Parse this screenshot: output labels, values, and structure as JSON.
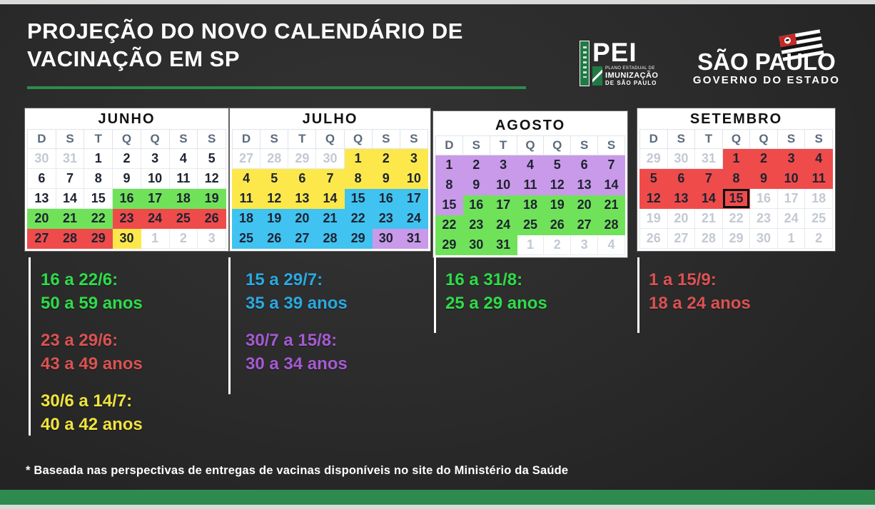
{
  "title": {
    "lines": [
      "PROJEÇÃO DO NOVO CALENDÁRIO DE",
      "VACINAÇÃO EM SP"
    ]
  },
  "logos": {
    "pei": {
      "acronym": "PEI",
      "subtitle_lines": [
        "PLANO ESTADUAL DE",
        "IMUNIZAÇÃO",
        "DE SÃO PAULO"
      ]
    },
    "sp": {
      "name": "SÃO PAULO",
      "subtitle": "GOVERNO DO ESTADO"
    }
  },
  "colors": {
    "background": "#2b2b2b",
    "accent_green": "#2e8a4e",
    "cell": {
      "green": "#70e25a",
      "red": "#ef4b4b",
      "yellow": "#fde84b",
      "blue": "#40c3f1",
      "purple": "#c99ae9"
    },
    "legend": {
      "green": "#2edc49",
      "red": "#db5252",
      "yellow": "#f0e43d",
      "blue": "#2aa9e1",
      "purple": "#a55ad2"
    },
    "muted_day": "#c3c9d3",
    "day_text": "#1d2330",
    "weekday_text": "#5b6b7d"
  },
  "calendars": [
    {
      "month": "JUNHO",
      "weekdays": [
        "D",
        "S",
        "T",
        "Q",
        "Q",
        "S",
        "S"
      ],
      "rows": [
        [
          {
            "d": "30",
            "muted": true
          },
          {
            "d": "31",
            "muted": true
          },
          {
            "d": "1"
          },
          {
            "d": "2"
          },
          {
            "d": "3"
          },
          {
            "d": "4"
          },
          {
            "d": "5"
          }
        ],
        [
          {
            "d": "6"
          },
          {
            "d": "7"
          },
          {
            "d": "8"
          },
          {
            "d": "9"
          },
          {
            "d": "10"
          },
          {
            "d": "11"
          },
          {
            "d": "12"
          }
        ],
        [
          {
            "d": "13"
          },
          {
            "d": "14"
          },
          {
            "d": "15"
          },
          {
            "d": "16",
            "bg": "green"
          },
          {
            "d": "17",
            "bg": "green"
          },
          {
            "d": "18",
            "bg": "green"
          },
          {
            "d": "19",
            "bg": "green"
          }
        ],
        [
          {
            "d": "20",
            "bg": "green"
          },
          {
            "d": "21",
            "bg": "green"
          },
          {
            "d": "22",
            "bg": "green"
          },
          {
            "d": "23",
            "bg": "red"
          },
          {
            "d": "24",
            "bg": "red"
          },
          {
            "d": "25",
            "bg": "red"
          },
          {
            "d": "26",
            "bg": "red"
          }
        ],
        [
          {
            "d": "27",
            "bg": "red"
          },
          {
            "d": "28",
            "bg": "red"
          },
          {
            "d": "29",
            "bg": "red"
          },
          {
            "d": "30",
            "bg": "yellow"
          },
          {
            "d": "1",
            "muted": true
          },
          {
            "d": "2",
            "muted": true
          },
          {
            "d": "3",
            "muted": true
          }
        ]
      ]
    },
    {
      "month": "JULHO",
      "weekdays": [
        "D",
        "S",
        "T",
        "Q",
        "Q",
        "S",
        "S"
      ],
      "rows": [
        [
          {
            "d": "27",
            "muted": true
          },
          {
            "d": "28",
            "muted": true
          },
          {
            "d": "29",
            "muted": true
          },
          {
            "d": "30",
            "muted": true
          },
          {
            "d": "1",
            "bg": "yellow"
          },
          {
            "d": "2",
            "bg": "yellow"
          },
          {
            "d": "3",
            "bg": "yellow"
          }
        ],
        [
          {
            "d": "4",
            "bg": "yellow"
          },
          {
            "d": "5",
            "bg": "yellow"
          },
          {
            "d": "6",
            "bg": "yellow"
          },
          {
            "d": "7",
            "bg": "yellow"
          },
          {
            "d": "8",
            "bg": "yellow"
          },
          {
            "d": "9",
            "bg": "yellow"
          },
          {
            "d": "10",
            "bg": "yellow"
          }
        ],
        [
          {
            "d": "11",
            "bg": "yellow"
          },
          {
            "d": "12",
            "bg": "yellow"
          },
          {
            "d": "13",
            "bg": "yellow"
          },
          {
            "d": "14",
            "bg": "yellow"
          },
          {
            "d": "15",
            "bg": "blue"
          },
          {
            "d": "16",
            "bg": "blue"
          },
          {
            "d": "17",
            "bg": "blue"
          }
        ],
        [
          {
            "d": "18",
            "bg": "blue"
          },
          {
            "d": "19",
            "bg": "blue"
          },
          {
            "d": "20",
            "bg": "blue"
          },
          {
            "d": "21",
            "bg": "blue"
          },
          {
            "d": "22",
            "bg": "blue"
          },
          {
            "d": "23",
            "bg": "blue"
          },
          {
            "d": "24",
            "bg": "blue"
          }
        ],
        [
          {
            "d": "25",
            "bg": "blue"
          },
          {
            "d": "26",
            "bg": "blue"
          },
          {
            "d": "27",
            "bg": "blue"
          },
          {
            "d": "28",
            "bg": "blue"
          },
          {
            "d": "29",
            "bg": "blue"
          },
          {
            "d": "30",
            "bg": "purple"
          },
          {
            "d": "31",
            "bg": "purple"
          }
        ]
      ]
    },
    {
      "month": "AGOSTO",
      "weekdays": [
        "D",
        "S",
        "T",
        "Q",
        "Q",
        "S",
        "S"
      ],
      "rows": [
        [
          {
            "d": "1",
            "bg": "purple"
          },
          {
            "d": "2",
            "bg": "purple"
          },
          {
            "d": "3",
            "bg": "purple"
          },
          {
            "d": "4",
            "bg": "purple"
          },
          {
            "d": "5",
            "bg": "purple"
          },
          {
            "d": "6",
            "bg": "purple"
          },
          {
            "d": "7",
            "bg": "purple"
          }
        ],
        [
          {
            "d": "8",
            "bg": "purple"
          },
          {
            "d": "9",
            "bg": "purple"
          },
          {
            "d": "10",
            "bg": "purple"
          },
          {
            "d": "11",
            "bg": "purple"
          },
          {
            "d": "12",
            "bg": "purple"
          },
          {
            "d": "13",
            "bg": "purple"
          },
          {
            "d": "14",
            "bg": "purple"
          }
        ],
        [
          {
            "d": "15",
            "bg": "purple"
          },
          {
            "d": "16",
            "bg": "green"
          },
          {
            "d": "17",
            "bg": "green"
          },
          {
            "d": "18",
            "bg": "green"
          },
          {
            "d": "19",
            "bg": "green"
          },
          {
            "d": "20",
            "bg": "green"
          },
          {
            "d": "21",
            "bg": "green"
          }
        ],
        [
          {
            "d": "22",
            "bg": "green"
          },
          {
            "d": "23",
            "bg": "green"
          },
          {
            "d": "24",
            "bg": "green"
          },
          {
            "d": "25",
            "bg": "green"
          },
          {
            "d": "26",
            "bg": "green"
          },
          {
            "d": "27",
            "bg": "green"
          },
          {
            "d": "28",
            "bg": "green"
          }
        ],
        [
          {
            "d": "29",
            "bg": "green"
          },
          {
            "d": "30",
            "bg": "green"
          },
          {
            "d": "31",
            "bg": "green"
          },
          {
            "d": "1",
            "muted": true
          },
          {
            "d": "2",
            "muted": true
          },
          {
            "d": "3",
            "muted": true
          },
          {
            "d": "4",
            "muted": true
          }
        ]
      ]
    },
    {
      "month": "SETEMBRO",
      "weekdays": [
        "D",
        "S",
        "T",
        "Q",
        "Q",
        "S",
        "S"
      ],
      "rows": [
        [
          {
            "d": "29",
            "muted": true
          },
          {
            "d": "30",
            "muted": true
          },
          {
            "d": "31",
            "muted": true
          },
          {
            "d": "1",
            "bg": "red"
          },
          {
            "d": "2",
            "bg": "red"
          },
          {
            "d": "3",
            "bg": "red"
          },
          {
            "d": "4",
            "bg": "red"
          }
        ],
        [
          {
            "d": "5",
            "bg": "red"
          },
          {
            "d": "6",
            "bg": "red"
          },
          {
            "d": "7",
            "bg": "red"
          },
          {
            "d": "8",
            "bg": "red"
          },
          {
            "d": "9",
            "bg": "red"
          },
          {
            "d": "10",
            "bg": "red"
          },
          {
            "d": "11",
            "bg": "red"
          }
        ],
        [
          {
            "d": "12",
            "bg": "red"
          },
          {
            "d": "13",
            "bg": "red"
          },
          {
            "d": "14",
            "bg": "red"
          },
          {
            "d": "15",
            "bg": "red",
            "boxed": true
          },
          {
            "d": "16",
            "muted": true
          },
          {
            "d": "17",
            "muted": true
          },
          {
            "d": "18",
            "muted": true
          }
        ],
        [
          {
            "d": "19",
            "muted": true
          },
          {
            "d": "20",
            "muted": true
          },
          {
            "d": "21",
            "muted": true
          },
          {
            "d": "22",
            "muted": true
          },
          {
            "d": "23",
            "muted": true
          },
          {
            "d": "24",
            "muted": true
          },
          {
            "d": "25",
            "muted": true
          }
        ],
        [
          {
            "d": "26",
            "muted": true
          },
          {
            "d": "27",
            "muted": true
          },
          {
            "d": "28",
            "muted": true
          },
          {
            "d": "29",
            "muted": true
          },
          {
            "d": "30",
            "muted": true
          },
          {
            "d": "1",
            "muted": true
          },
          {
            "d": "2",
            "muted": true
          }
        ]
      ]
    }
  ],
  "legend_columns": [
    {
      "entries": [
        {
          "range": "16 a 22/6:",
          "ages": "50 a 59 anos",
          "color": "green"
        },
        {
          "range": "23 a 29/6:",
          "ages": "43 a 49 anos",
          "color": "red"
        },
        {
          "range": "30/6 a 14/7:",
          "ages": "40 a 42 anos",
          "color": "yellow"
        }
      ]
    },
    {
      "entries": [
        {
          "range": "15 a 29/7:",
          "ages": "35 a 39 anos",
          "color": "blue"
        },
        {
          "range": "30/7 a 15/8:",
          "ages": "30 a 34 anos",
          "color": "purple"
        }
      ]
    },
    {
      "entries": [
        {
          "range": "16 a 31/8:",
          "ages": "25 a 29 anos",
          "color": "green"
        }
      ]
    },
    {
      "entries": [
        {
          "range": "1 a 15/9:",
          "ages": "18 a 24 anos",
          "color": "red"
        }
      ]
    }
  ],
  "footnote": "* Baseada nas perspectivas de entregas de vacinas disponíveis no site do Ministério da Saúde"
}
